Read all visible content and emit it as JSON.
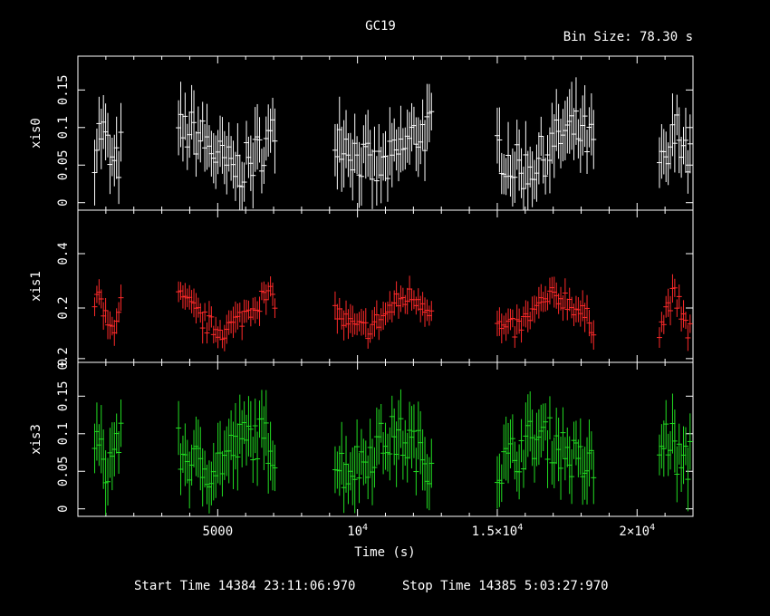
{
  "chart_data": {
    "type": "scatter",
    "title": "GC19",
    "bin_size_label": "Bin Size:  78.30  s",
    "xlabel": "Time (s)",
    "xlim": [
      0,
      22000
    ],
    "x_ticks": [
      {
        "value": 5000,
        "label": "5000"
      },
      {
        "value": 10000,
        "label": "10^4"
      },
      {
        "value": 15000,
        "label": "1.5×10^4"
      },
      {
        "value": 20000,
        "label": "2×10^4"
      }
    ],
    "footer": {
      "start": "Start Time 14384  23:11:06:970",
      "stop": "Stop Time 14385   5:03:27:970"
    },
    "segments": [
      [
        600,
        1550
      ],
      [
        3600,
        7100
      ],
      [
        9200,
        12700
      ],
      [
        15000,
        18500
      ],
      [
        20800,
        21900
      ]
    ],
    "panels": [
      {
        "name": "xis0",
        "ylabel": "xis0",
        "color": "#ffffff",
        "ylim": [
          -0.01,
          0.195
        ],
        "y_ticks": [
          {
            "value": 0,
            "label": "0"
          },
          {
            "value": 0.05,
            "label": "0.05"
          },
          {
            "value": 0.1,
            "label": "0.1"
          },
          {
            "value": 0.15,
            "label": "0.15"
          }
        ],
        "base": 0.07,
        "amp": 0.025,
        "noise": 0.03,
        "err": 0.035
      },
      {
        "name": "xis1",
        "ylabel": "xis1",
        "color": "#ff2a2a",
        "ylim": [
          0.0,
          0.56
        ],
        "y_ticks": [
          {
            "value": 0.2,
            "label": "0.2"
          },
          {
            "value": 0.4,
            "label": "0.4"
          },
          {
            "value": 0.0,
            "label": "0"
          }
        ],
        "base": 0.18,
        "amp": 0.06,
        "noise": 0.04,
        "err": 0.045
      },
      {
        "name": "xis3",
        "ylabel": "xis3",
        "color": "#22dd22",
        "ylim": [
          -0.01,
          0.195
        ],
        "y_ticks": [
          {
            "value": 0,
            "label": "0"
          },
          {
            "value": 0.05,
            "label": "0.05"
          },
          {
            "value": 0.1,
            "label": "0.1"
          },
          {
            "value": 0.15,
            "label": "0.15"
          },
          {
            "value": 0.2,
            "label": "0.2"
          }
        ],
        "base": 0.075,
        "amp": 0.02,
        "noise": 0.03,
        "err": 0.035
      }
    ]
  }
}
